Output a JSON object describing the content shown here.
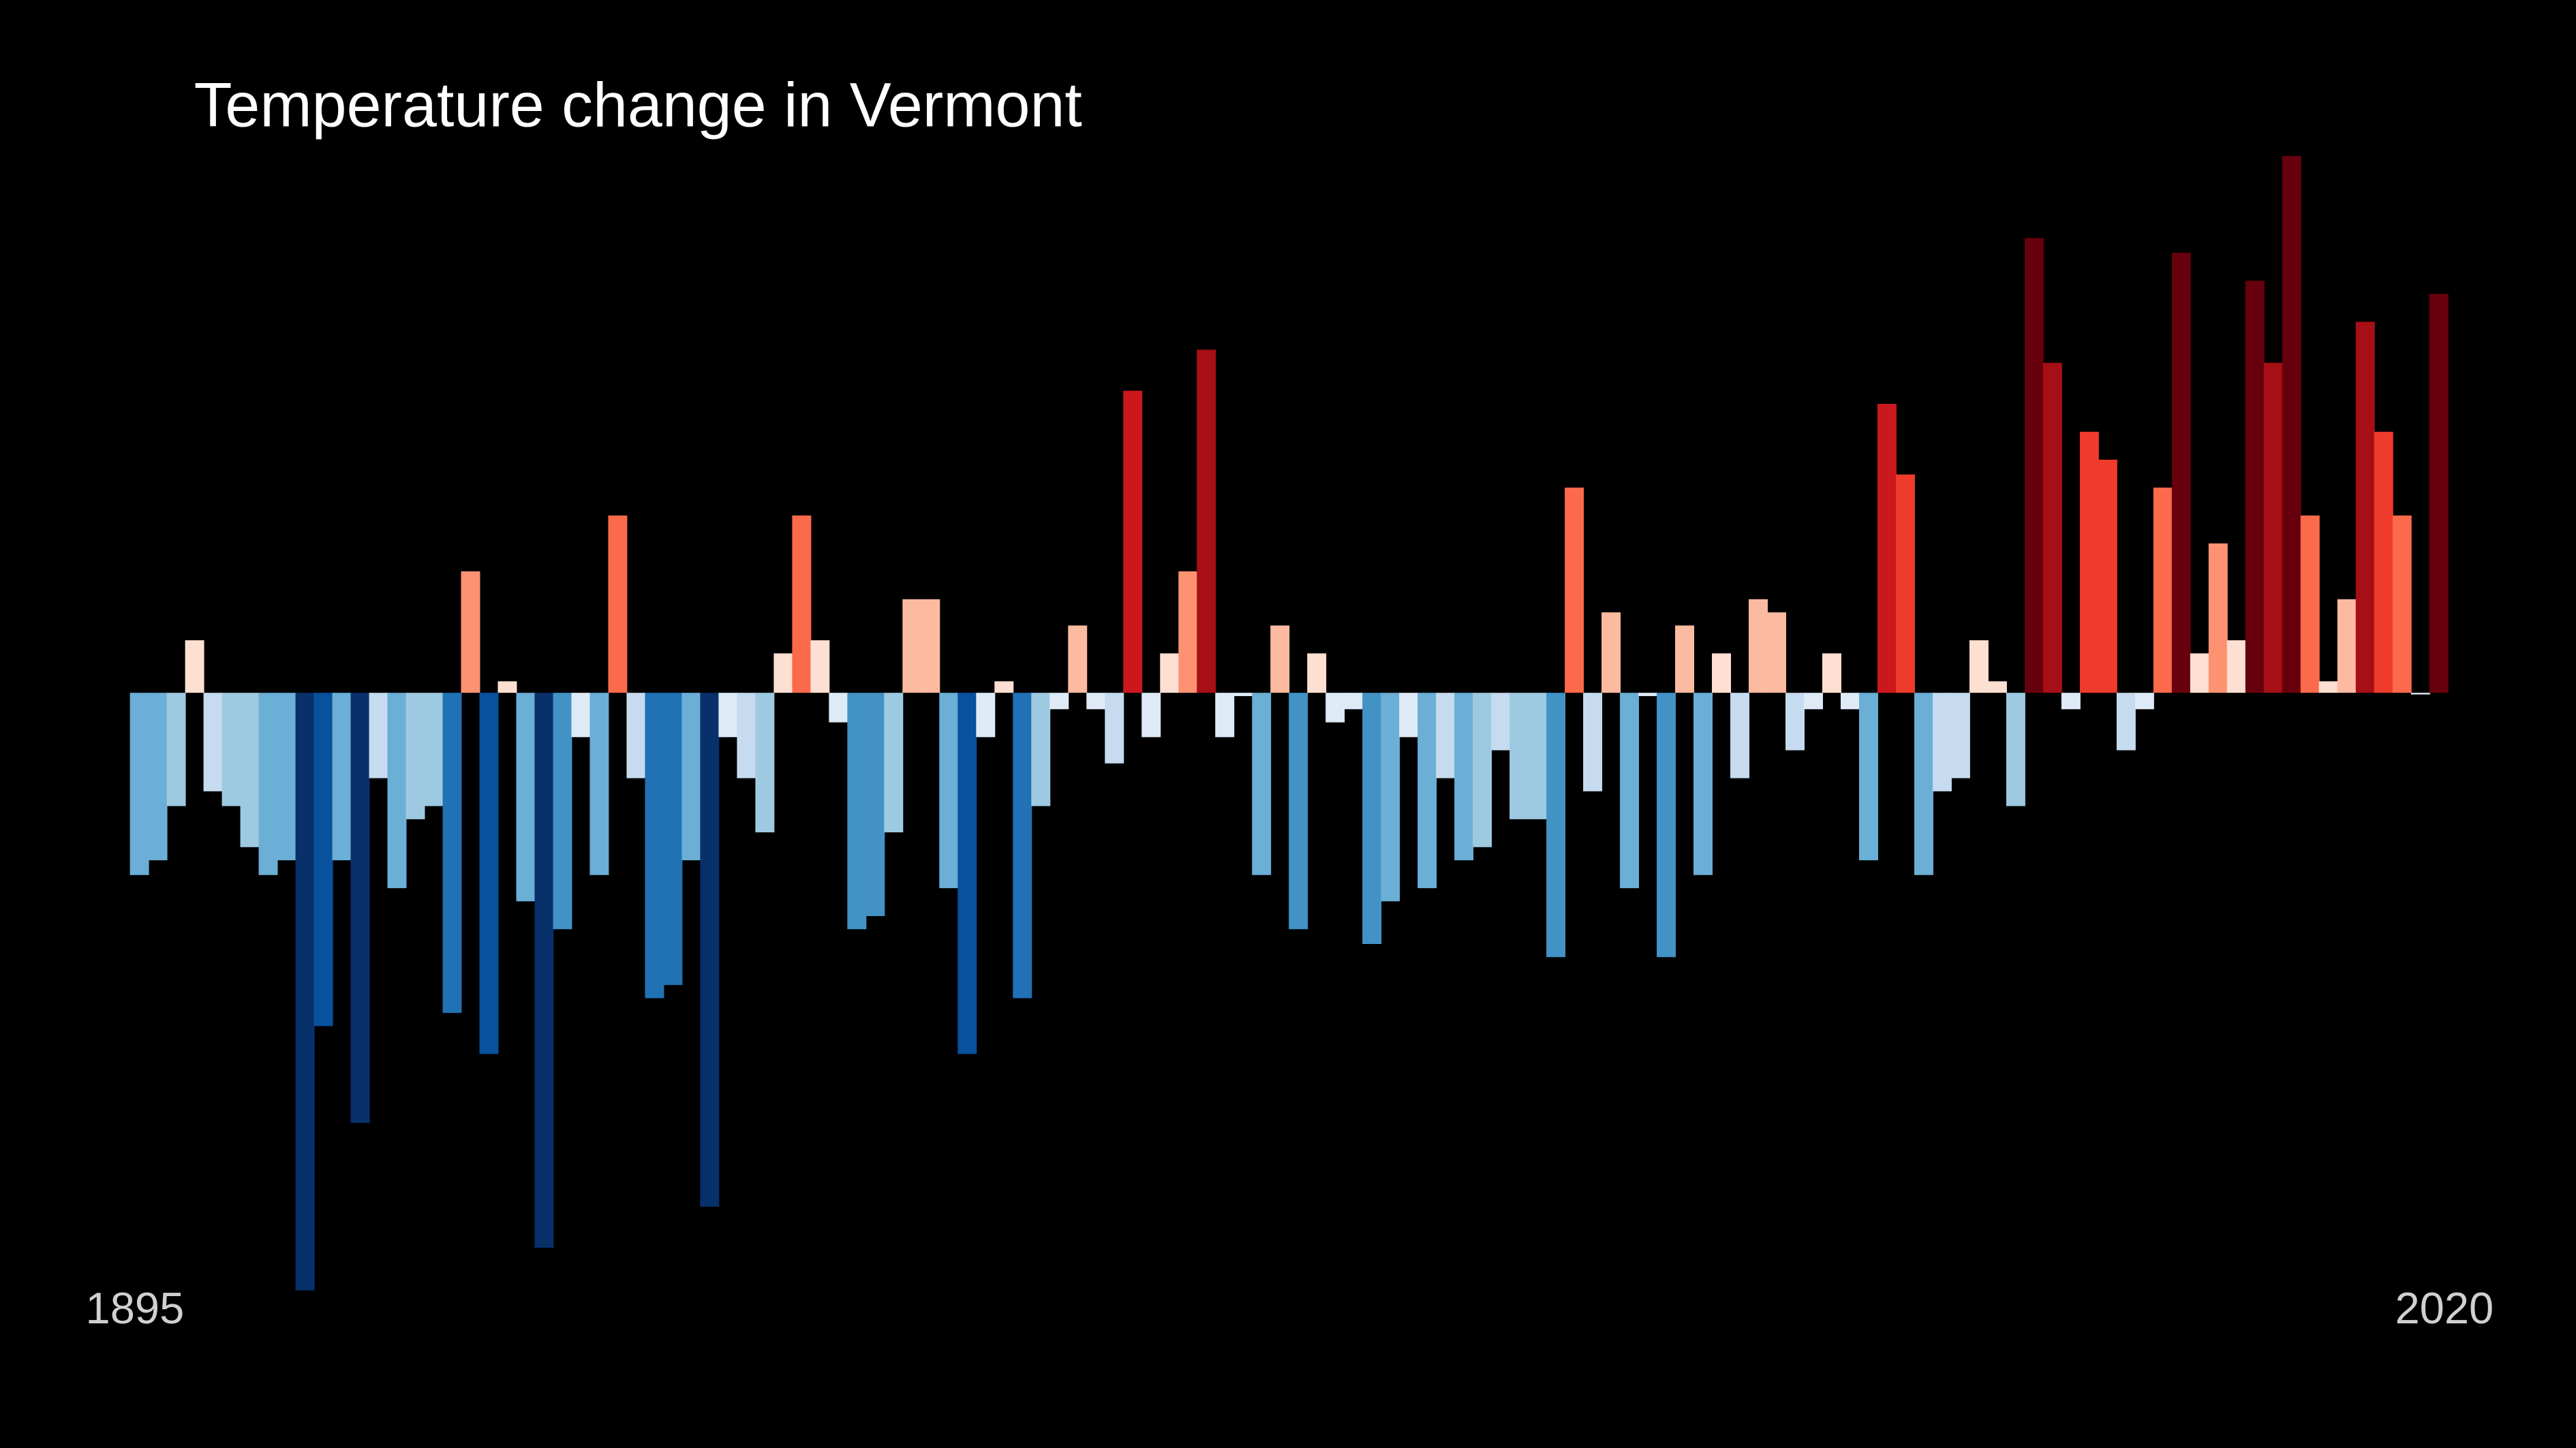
{
  "chart_data": {
    "type": "bar",
    "title": "Temperature change in Vermont",
    "categories": [
      "1895",
      null,
      null,
      null,
      null,
      null,
      null,
      null,
      null,
      null,
      null,
      null,
      null,
      null,
      null,
      null,
      null,
      null,
      null,
      null,
      null,
      null,
      null,
      null,
      null,
      null,
      null,
      null,
      null,
      null,
      null,
      null,
      null,
      null,
      null,
      null,
      null,
      null,
      null,
      null,
      null,
      null,
      null,
      null,
      null,
      null,
      null,
      null,
      null,
      null,
      null,
      null,
      null,
      null,
      null,
      null,
      null,
      null,
      null,
      null,
      null,
      null,
      null,
      null,
      null,
      null,
      null,
      null,
      null,
      null,
      null,
      null,
      null,
      null,
      null,
      null,
      null,
      null,
      null,
      null,
      null,
      null,
      null,
      null,
      null,
      null,
      null,
      null,
      null,
      null,
      null,
      null,
      null,
      null,
      null,
      null,
      null,
      null,
      null,
      null,
      null,
      null,
      null,
      null,
      null,
      null,
      null,
      null,
      null,
      null,
      null,
      null,
      null,
      null,
      null,
      null,
      null,
      null,
      null,
      null,
      null,
      null,
      null,
      null,
      null,
      "2020"
    ],
    "values": [
      -1.11,
      -1.02,
      -0.69,
      0.32,
      -0.6,
      -0.69,
      -0.94,
      -1.11,
      -1.02,
      -3.64,
      -2.03,
      -1.02,
      -2.62,
      -0.52,
      -1.19,
      -0.77,
      -0.69,
      -1.95,
      0.74,
      -2.2,
      0.07,
      -1.27,
      -3.38,
      -1.44,
      -0.27,
      -1.11,
      1.08,
      -0.52,
      -1.86,
      -1.78,
      -1.02,
      -3.13,
      -0.27,
      -0.52,
      -0.85,
      0.24,
      1.08,
      0.32,
      -0.18,
      -1.44,
      -1.36,
      -0.85,
      0.57,
      0.57,
      -1.19,
      -2.2,
      -0.27,
      0.07,
      -1.86,
      -0.69,
      -0.1,
      0.41,
      -0.1,
      -0.43,
      1.84,
      -0.27,
      0.24,
      0.74,
      2.09,
      -0.27,
      -0.02,
      -1.11,
      0.41,
      -1.44,
      0.24,
      -0.18,
      -0.1,
      -1.53,
      -1.27,
      -0.27,
      -1.19,
      -0.52,
      -1.02,
      -0.94,
      -0.35,
      -0.77,
      -0.77,
      -1.61,
      1.25,
      -0.6,
      0.49,
      -1.19,
      -0.02,
      -1.61,
      0.41,
      -1.11,
      0.24,
      -0.52,
      0.57,
      0.49,
      -0.35,
      -0.1,
      0.24,
      -0.1,
      -1.02,
      1.76,
      1.33,
      -1.11,
      -0.6,
      -0.52,
      0.32,
      0.07,
      -0.69,
      2.77,
      2.01,
      -0.1,
      1.59,
      1.42,
      -0.35,
      -0.1,
      1.25,
      2.68,
      0.24,
      0.91,
      0.32,
      2.51,
      2.01,
      3.27,
      1.08,
      0.07,
      0.57,
      2.26,
      1.59,
      1.08,
      -0.01,
      2.43
    ],
    "ylim": [
      -3.8,
      3.6
    ],
    "colormap": [
      "#08306b",
      "#08519c",
      "#2171b5",
      "#4292c6",
      "#6baed6",
      "#9ecae1",
      "#c6dbef",
      "#deebf7",
      "#fee0d2",
      "#fcbba1",
      "#fc9272",
      "#fb6a4a",
      "#ef3b2c",
      "#cb181d",
      "#a50f15",
      "#67000d"
    ],
    "clim": [
      -2.6,
      2.6
    ],
    "grid": false
  }
}
